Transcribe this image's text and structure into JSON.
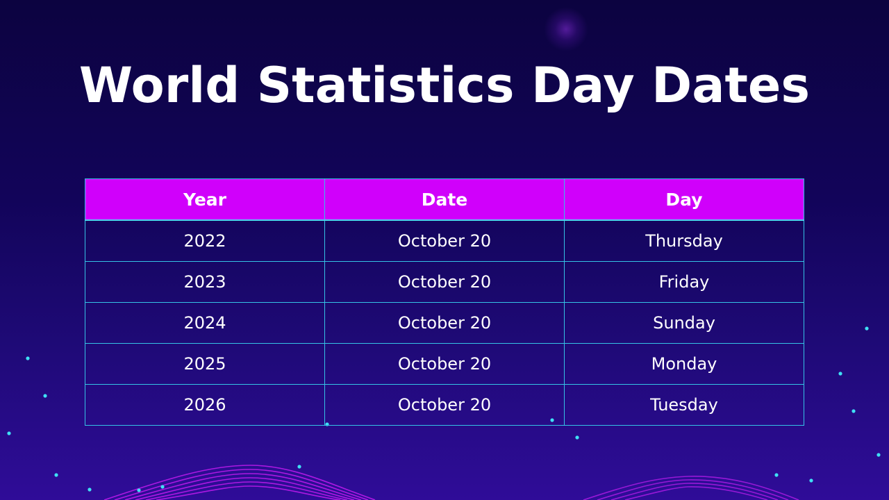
{
  "slide": {
    "title": "World Statistics Day Dates"
  },
  "table": {
    "headers": [
      "Year",
      "Date",
      "Day"
    ],
    "rows": [
      [
        "2022",
        "October 20",
        "Thursday"
      ],
      [
        "2023",
        "October 20",
        "Friday"
      ],
      [
        "2024",
        "October 20",
        "Sunday"
      ],
      [
        "2025",
        "October 20",
        "Monday"
      ],
      [
        "2026",
        "October 20",
        "Tuesday"
      ]
    ]
  },
  "colors": {
    "background_top": "#0c0340",
    "background_bottom": "#2f0c98",
    "header_fill": "#d000fb",
    "grid_line": "#35c3e6",
    "accent_wave": "#c21bf0",
    "dot_color": "#3fe0f5"
  }
}
